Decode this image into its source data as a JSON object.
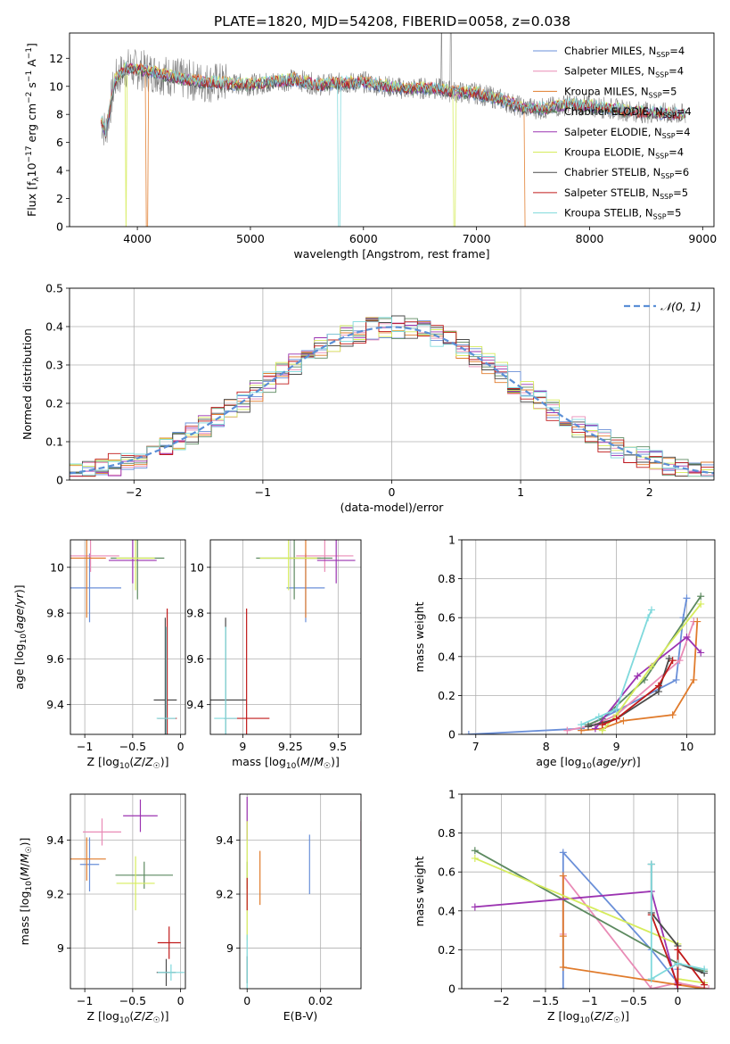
{
  "figure_title": "PLATE=1820, MJD=54208, FIBERID=0058, z=0.038",
  "models": [
    {
      "name": "Chabrier MILES",
      "nssp": "4",
      "color": "#6a8fd8"
    },
    {
      "name": "Salpeter MILES",
      "nssp": "4",
      "color": "#e98bb6"
    },
    {
      "name": "Kroupa MILES",
      "nssp": "5",
      "color": "#e07b2c"
    },
    {
      "name": "Chabrier ELODIE",
      "nssp": "4",
      "color": "#5d8a60"
    },
    {
      "name": "Salpeter ELODIE",
      "nssp": "4",
      "color": "#9b33b1"
    },
    {
      "name": "Kroupa ELODIE",
      "nssp": "4",
      "color": "#d6ec5c"
    },
    {
      "name": "Chabrier STELIB",
      "nssp": "6",
      "color": "#4a4a4a"
    },
    {
      "name": "Salpeter STELIB",
      "nssp": "5",
      "color": "#c01a1a"
    },
    {
      "name": "Kroupa STELIB",
      "nssp": "5",
      "color": "#7fd9dc"
    }
  ],
  "chart_data": [
    {
      "id": "spectrum",
      "type": "line",
      "xlabel": "wavelength [Angstrom, rest frame]",
      "ylabel": "Flux [f_λ 10^-17 erg cm^-2 s^-1 A^-1]",
      "xlim": [
        3400,
        9100
      ],
      "ylim": [
        0,
        13.8
      ],
      "xticks": [
        4000,
        5000,
        6000,
        7000,
        8000,
        9000
      ],
      "yticks": [
        0,
        2,
        4,
        6,
        8,
        10,
        12
      ],
      "observed_color": "#808080",
      "x": [
        3680,
        3720,
        3800,
        3900,
        4000,
        4200,
        4400,
        4600,
        4800,
        5000,
        5200,
        5400,
        5600,
        5800,
        6000,
        6200,
        6400,
        6600,
        6800,
        7000,
        7200,
        7400,
        7600,
        7800,
        8000,
        8200,
        8400,
        8600,
        8800
      ],
      "flux": [
        7.6,
        6.7,
        10.4,
        11.3,
        11.2,
        10.9,
        10.5,
        10.3,
        10.2,
        10.1,
        10.3,
        10.5,
        10.1,
        10.2,
        10.3,
        10.0,
        9.8,
        9.9,
        9.6,
        9.5,
        9.1,
        8.5,
        8.4,
        8.7,
        8.6,
        8.4,
        8.2,
        8.1,
        8.0
      ],
      "grid": false,
      "legend": "top-right"
    },
    {
      "id": "residual_hist",
      "type": "line",
      "xlabel": "(data-model)/error",
      "ylabel": "Normed distribution",
      "xlim": [
        -2.5,
        2.5
      ],
      "ylim": [
        0,
        0.5
      ],
      "xticks": [
        -2,
        -1,
        0,
        1,
        2
      ],
      "yticks": [
        0,
        0.1,
        0.2,
        0.3,
        0.4,
        0.5
      ],
      "gaussian_label": "N(0,1)",
      "gaussian_color": "#5b8fd6",
      "grid": true,
      "legend": "top-right"
    },
    {
      "id": "age_vs_Z",
      "type": "scatter",
      "xlabel": "Z [log10(Z/Z☉)]",
      "ylabel": "age [log10(age/yr)]",
      "xlim": [
        -1.15,
        0.05
      ],
      "ylim": [
        9.27,
        10.12
      ],
      "xticks": [
        -1.0,
        -0.5,
        0.0
      ],
      "yticks": [
        9.4,
        9.6,
        9.8,
        10.0
      ],
      "points": [
        {
          "x": -0.95,
          "y": 9.91,
          "xerr": 0.33,
          "yerr": 0.15,
          "m": 0
        },
        {
          "x": -0.94,
          "y": 10.05,
          "xerr": 0.3,
          "yerr": 0.07,
          "m": 1
        },
        {
          "x": -0.98,
          "y": 10.04,
          "xerr": 0.2,
          "yerr": 0.26,
          "m": 2
        },
        {
          "x": -0.45,
          "y": 10.04,
          "xerr": 0.28,
          "yerr": 0.18,
          "m": 3
        },
        {
          "x": -0.5,
          "y": 10.03,
          "xerr": 0.25,
          "yerr": 0.1,
          "m": 4
        },
        {
          "x": -0.47,
          "y": 10.04,
          "xerr": 0.2,
          "yerr": 0.14,
          "m": 5
        },
        {
          "x": -0.16,
          "y": 9.42,
          "xerr": 0.12,
          "yerr": 0.36,
          "m": 6
        },
        {
          "x": -0.14,
          "y": 9.34,
          "xerr": 0.1,
          "yerr": 0.48,
          "m": 7
        },
        {
          "x": -0.15,
          "y": 9.34,
          "xerr": 0.1,
          "yerr": 0.4,
          "m": 8
        }
      ],
      "grid": true
    },
    {
      "id": "age_vs_mass",
      "type": "scatter",
      "xlabel": "mass [log10(M/M☉)]",
      "ylabel": "",
      "xlim": [
        8.83,
        9.62
      ],
      "ylim": [
        9.27,
        10.12
      ],
      "xticks": [
        9.0,
        9.25,
        9.5
      ],
      "yticks": [
        9.4,
        9.6,
        9.8,
        10.0
      ],
      "points": [
        {
          "x": 9.33,
          "y": 9.91,
          "xerr": 0.1,
          "yerr": 0.15,
          "m": 0
        },
        {
          "x": 9.43,
          "y": 10.05,
          "xerr": 0.15,
          "yerr": 0.07,
          "m": 1
        },
        {
          "x": 9.33,
          "y": 10.04,
          "xerr": 0.08,
          "yerr": 0.26,
          "m": 2
        },
        {
          "x": 9.27,
          "y": 10.04,
          "xerr": 0.2,
          "yerr": 0.18,
          "m": 3
        },
        {
          "x": 9.49,
          "y": 10.03,
          "xerr": 0.1,
          "yerr": 0.1,
          "m": 4
        },
        {
          "x": 9.24,
          "y": 10.04,
          "xerr": 0.15,
          "yerr": 0.14,
          "m": 5
        },
        {
          "x": 8.91,
          "y": 9.42,
          "xerr": 0.11,
          "yerr": 0.36,
          "m": 6
        },
        {
          "x": 9.02,
          "y": 9.34,
          "xerr": 0.12,
          "yerr": 0.48,
          "m": 7
        },
        {
          "x": 8.91,
          "y": 9.34,
          "xerr": 0.06,
          "yerr": 0.4,
          "m": 8
        }
      ],
      "grid": true
    },
    {
      "id": "weight_vs_age",
      "type": "line",
      "xlabel": "age [log10(age/yr)]",
      "ylabel": "mass weight",
      "xlim": [
        6.8,
        10.4
      ],
      "ylim": [
        0,
        1.0
      ],
      "xticks": [
        7,
        8,
        9,
        10
      ],
      "yticks": [
        0,
        0.2,
        0.4,
        0.6,
        0.8,
        1.0
      ],
      "series": [
        {
          "m": 0,
          "x": [
            6.9,
            8.5,
            9.0,
            9.85,
            9.95,
            10.0
          ],
          "y": [
            0.0,
            0.03,
            0.12,
            0.28,
            0.6,
            0.7
          ]
        },
        {
          "m": 1,
          "x": [
            8.3,
            8.7,
            9.0,
            9.9,
            10.1
          ],
          "y": [
            0.02,
            0.05,
            0.1,
            0.38,
            0.58
          ]
        },
        {
          "m": 2,
          "x": [
            8.5,
            8.8,
            9.1,
            9.8,
            10.1,
            10.15
          ],
          "y": [
            0.02,
            0.03,
            0.07,
            0.1,
            0.28,
            0.58
          ]
        },
        {
          "m": 3,
          "x": [
            8.6,
            8.8,
            9.4,
            10.2
          ],
          "y": [
            0.05,
            0.08,
            0.28,
            0.71
          ]
        },
        {
          "m": 4,
          "x": [
            8.7,
            9.3,
            10.0,
            10.2
          ],
          "y": [
            0.03,
            0.3,
            0.5,
            0.42
          ]
        },
        {
          "m": 5,
          "x": [
            8.8,
            9.0,
            9.5,
            10.2
          ],
          "y": [
            0.02,
            0.1,
            0.35,
            0.67
          ]
        },
        {
          "m": 6,
          "x": [
            8.6,
            9.0,
            9.6,
            9.75
          ],
          "y": [
            0.04,
            0.08,
            0.22,
            0.39
          ]
        },
        {
          "m": 7,
          "x": [
            8.8,
            9.0,
            9.6,
            9.8
          ],
          "y": [
            0.05,
            0.08,
            0.25,
            0.38
          ]
        },
        {
          "m": 8,
          "x": [
            8.5,
            8.75,
            9.0,
            9.45,
            9.5
          ],
          "y": [
            0.05,
            0.09,
            0.13,
            0.6,
            0.64
          ]
        }
      ],
      "grid": true
    },
    {
      "id": "mass_vs_Z",
      "type": "scatter",
      "xlabel": "Z [log10(Z/Z☉)]",
      "ylabel": "mass [log10(M/M☉)]",
      "xlim": [
        -1.15,
        0.05
      ],
      "ylim": [
        8.85,
        9.57
      ],
      "xticks": [
        -1.0,
        -0.5,
        0.0
      ],
      "yticks": [
        9.0,
        9.2,
        9.4
      ],
      "points": [
        {
          "x": -0.95,
          "y": 9.31,
          "xerr": 0.1,
          "yerr": 0.1,
          "m": 0
        },
        {
          "x": -0.82,
          "y": 9.43,
          "xerr": 0.2,
          "yerr": 0.05,
          "m": 1
        },
        {
          "x": -0.98,
          "y": 9.33,
          "xerr": 0.2,
          "yerr": 0.08,
          "m": 2
        },
        {
          "x": -0.38,
          "y": 9.27,
          "xerr": 0.3,
          "yerr": 0.05,
          "m": 3
        },
        {
          "x": -0.42,
          "y": 9.49,
          "xerr": 0.18,
          "yerr": 0.06,
          "m": 4
        },
        {
          "x": -0.47,
          "y": 9.24,
          "xerr": 0.2,
          "yerr": 0.1,
          "m": 5
        },
        {
          "x": -0.15,
          "y": 8.91,
          "xerr": 0.1,
          "yerr": 0.05,
          "m": 6
        },
        {
          "x": -0.12,
          "y": 9.02,
          "xerr": 0.12,
          "yerr": 0.06,
          "m": 7
        },
        {
          "x": -0.1,
          "y": 8.91,
          "xerr": 0.14,
          "yerr": 0.03,
          "m": 8
        }
      ],
      "grid": true
    },
    {
      "id": "mass_vs_EBV",
      "type": "scatter",
      "xlabel": "E(B-V)",
      "ylabel": "",
      "xlim": [
        -0.002,
        0.031
      ],
      "ylim": [
        8.85,
        9.57
      ],
      "xticks": [
        0.0,
        0.02
      ],
      "yticks": [
        9.0,
        9.2,
        9.4
      ],
      "points": [
        {
          "x": 0.017,
          "y": 9.31,
          "xerr": 0,
          "yerr": 0.11,
          "m": 0
        },
        {
          "x": 0.031,
          "y": 9.38,
          "xerr": 0,
          "yerr": 0.09,
          "m": 1
        },
        {
          "x": 0.0035,
          "y": 9.26,
          "xerr": 0,
          "yerr": 0.1,
          "m": 2
        },
        {
          "x": 0.0,
          "y": 9.27,
          "xerr": 0,
          "yerr": 0.05,
          "m": 3
        },
        {
          "x": 0.0,
          "y": 9.48,
          "xerr": 0,
          "yerr": 0.08,
          "m": 4
        },
        {
          "x": 0.0,
          "y": 9.25,
          "xerr": 0,
          "yerr": 0.22,
          "m": 5
        },
        {
          "x": 0.0,
          "y": 8.92,
          "xerr": 0,
          "yerr": 0.05,
          "m": 6
        },
        {
          "x": 0.0,
          "y": 9.2,
          "xerr": 0,
          "yerr": 0.06,
          "m": 7
        },
        {
          "x": 0.0,
          "y": 8.95,
          "xerr": 0,
          "yerr": 0.1,
          "m": 8
        }
      ],
      "grid": true
    },
    {
      "id": "weight_vs_Z",
      "type": "line",
      "xlabel": "Z [log10(Z/Z☉)]",
      "ylabel": "mass weight",
      "xlim": [
        -2.45,
        0.42
      ],
      "ylim": [
        0,
        1.0
      ],
      "xticks": [
        -2.0,
        -1.5,
        -1.0,
        -0.5,
        0.0
      ],
      "yticks": [
        0,
        0.2,
        0.4,
        0.6,
        0.8,
        1.0
      ],
      "series": [
        {
          "m": 0,
          "x": [
            -1.3,
            -1.3,
            -0.3,
            0.0,
            0.0
          ],
          "y": [
            0.0,
            0.7,
            0.2,
            0.03,
            0.1
          ]
        },
        {
          "m": 1,
          "x": [
            -1.3,
            -1.3,
            -0.3,
            0.0,
            0.35
          ],
          "y": [
            0.28,
            0.58,
            0.0,
            0.03,
            0.0
          ]
        },
        {
          "m": 2,
          "x": [
            -1.3,
            -1.3,
            -1.3,
            0.0,
            0.3
          ],
          "y": [
            0.58,
            0.27,
            0.11,
            0.02,
            0.0
          ]
        },
        {
          "m": 3,
          "x": [
            -2.3,
            0.0,
            0.3
          ],
          "y": [
            0.71,
            0.13,
            0.09
          ]
        },
        {
          "m": 4,
          "x": [
            -2.3,
            -0.3,
            0.0
          ],
          "y": [
            0.42,
            0.5,
            0.0
          ]
        },
        {
          "m": 5,
          "x": [
            -2.3,
            0.0,
            0.0,
            0.3
          ],
          "y": [
            0.67,
            0.23,
            0.05,
            0.03
          ]
        },
        {
          "m": 6,
          "x": [
            -0.3,
            -0.3,
            0.0,
            0.0,
            0.3
          ],
          "y": [
            0.64,
            0.39,
            0.22,
            0.13,
            0.08
          ]
        },
        {
          "m": 7,
          "x": [
            -0.3,
            0.0,
            0.0,
            0.3
          ],
          "y": [
            0.38,
            0.02,
            0.2,
            0.02
          ]
        },
        {
          "m": 8,
          "x": [
            -0.3,
            -0.3,
            0.0,
            0.3
          ],
          "y": [
            0.64,
            0.05,
            0.13,
            0.1
          ]
        }
      ],
      "grid": true
    }
  ]
}
